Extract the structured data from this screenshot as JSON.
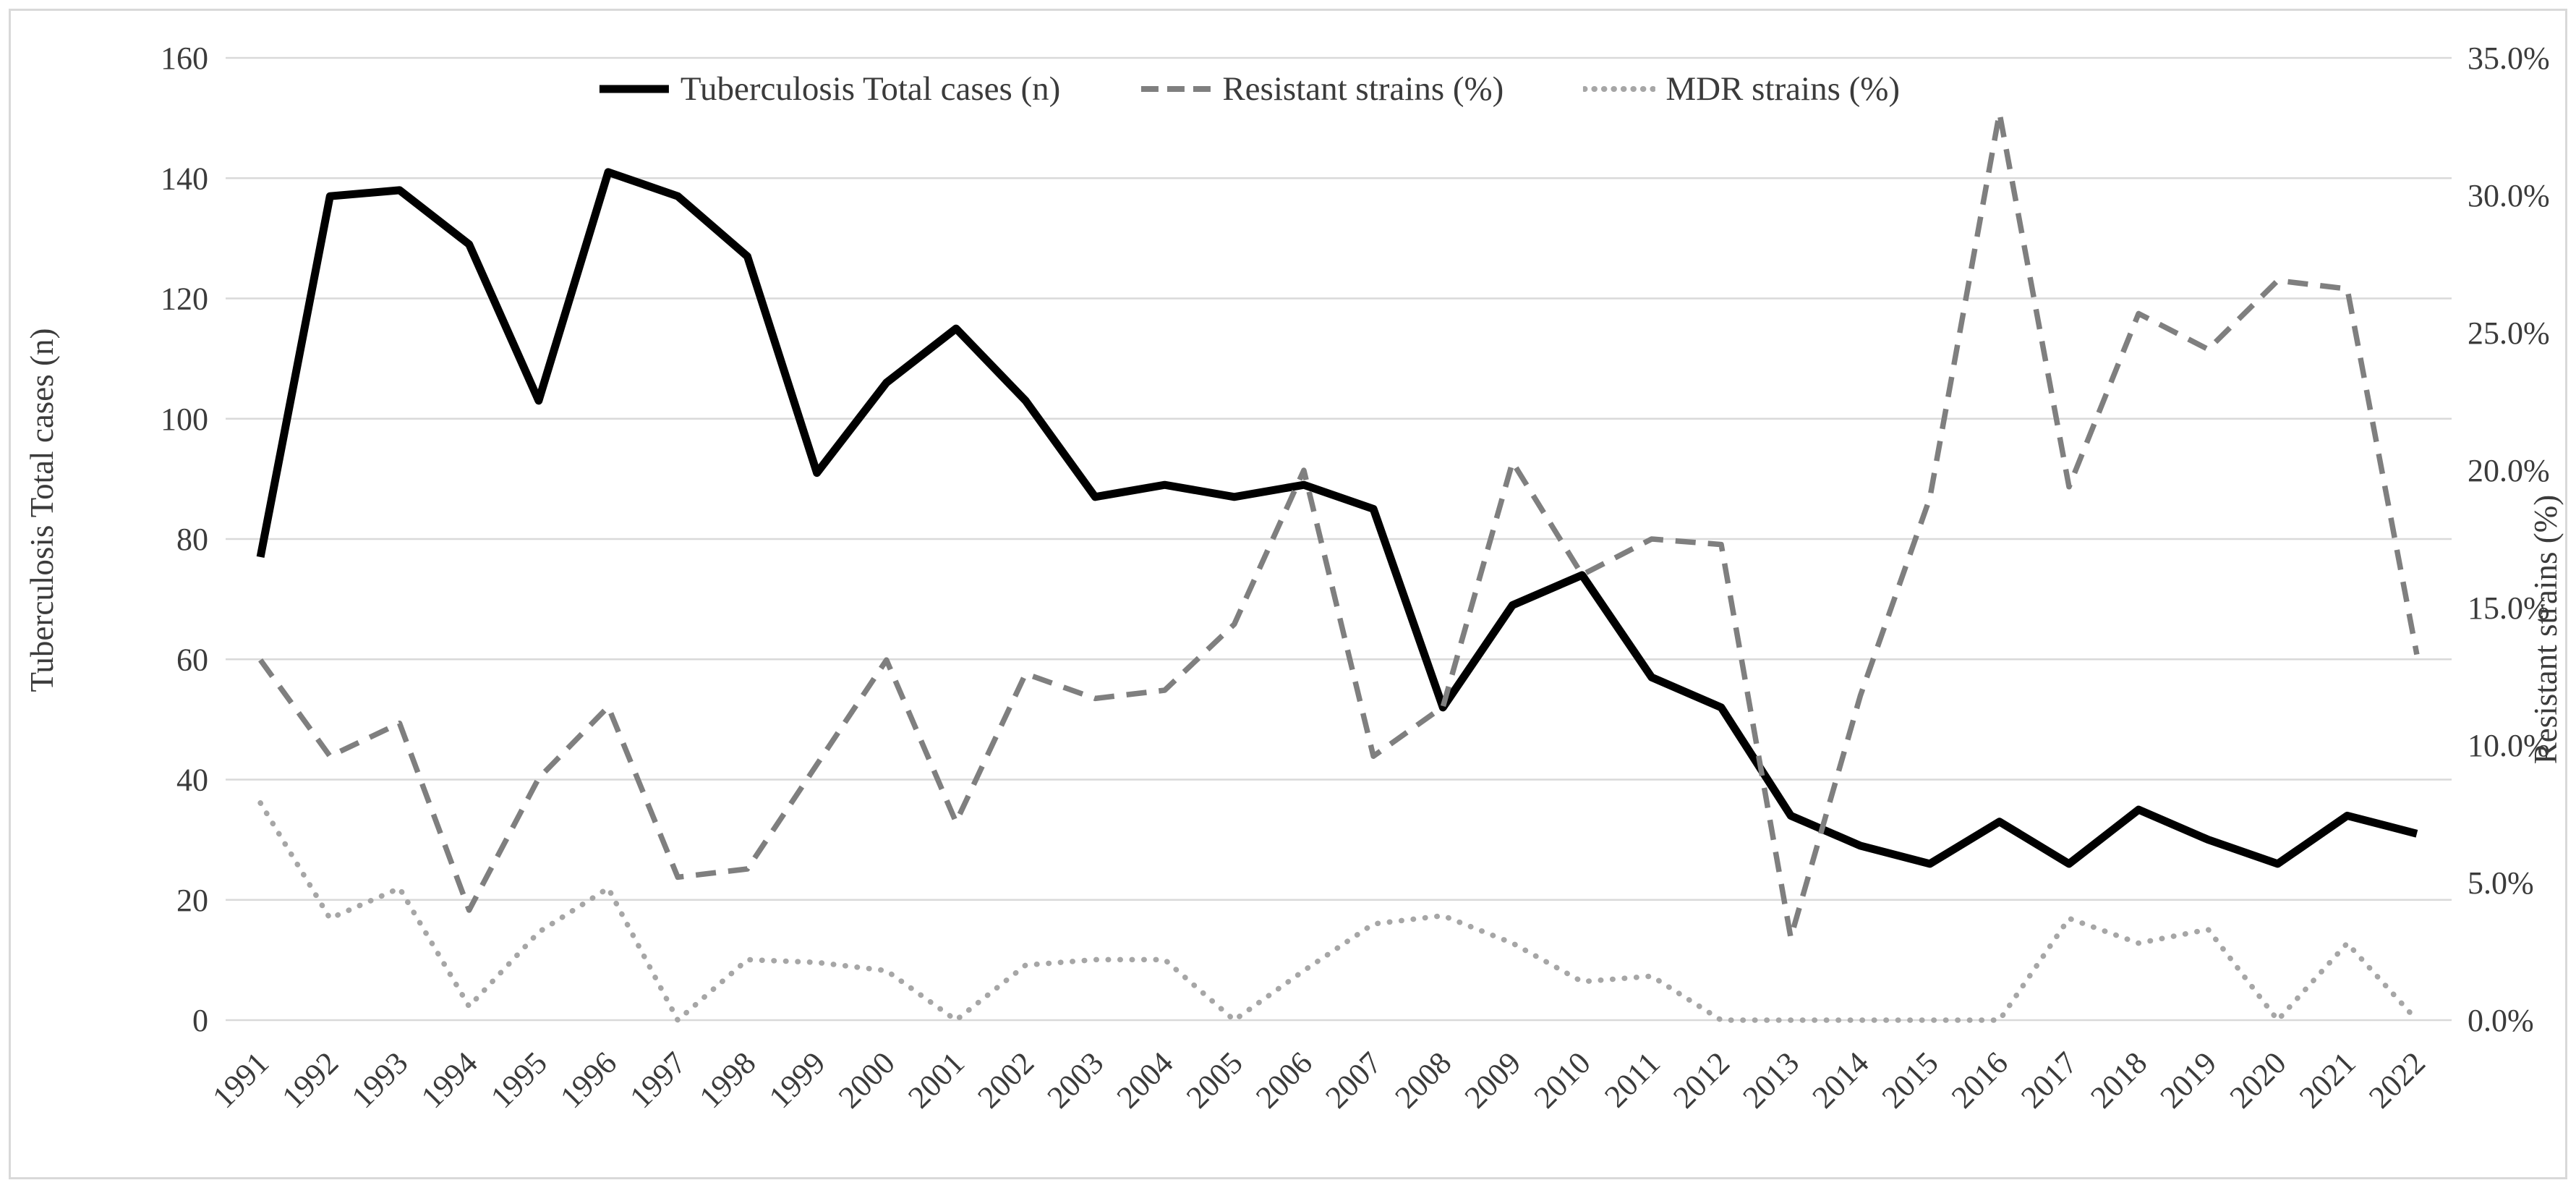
{
  "chart_data": {
    "type": "line",
    "title": "",
    "x": [
      1991,
      1992,
      1993,
      1994,
      1995,
      1996,
      1997,
      1998,
      1999,
      2000,
      2001,
      2002,
      2003,
      2004,
      2005,
      2006,
      2007,
      2008,
      2009,
      2010,
      2011,
      2012,
      2013,
      2014,
      2015,
      2016,
      2017,
      2018,
      2019,
      2020,
      2021,
      2022
    ],
    "series": [
      {
        "name": "Tuberculosis Total cases (n)",
        "axis": "left",
        "style": "solid",
        "color": "#000000",
        "values": [
          77,
          137,
          138,
          129,
          103,
          141,
          137,
          127,
          91,
          106,
          115,
          103,
          87,
          89,
          87,
          89,
          85,
          52,
          69,
          74,
          57,
          52,
          34,
          29,
          26,
          33,
          26,
          35,
          30,
          26,
          34,
          31
        ]
      },
      {
        "name": "Resistant strains (%)",
        "axis": "right",
        "style": "dashed",
        "color": "#7f7f7f",
        "values": [
          13.1,
          9.6,
          10.8,
          4.0,
          8.8,
          11.4,
          5.2,
          5.5,
          9.3,
          13.1,
          7.2,
          12.6,
          11.7,
          12.0,
          14.4,
          20.0,
          9.6,
          11.4,
          20.3,
          16.2,
          17.5,
          17.3,
          3.0,
          11.8,
          19.0,
          33.0,
          19.4,
          25.7,
          24.4,
          26.9,
          26.6,
          13.3
        ]
      },
      {
        "name": "MDR strains (%)",
        "axis": "right",
        "style": "dotted",
        "color": "#a6a6a6",
        "values": [
          7.9,
          3.7,
          4.8,
          0.5,
          3.2,
          4.8,
          0.0,
          2.2,
          2.1,
          1.8,
          0.0,
          2.0,
          2.2,
          2.2,
          0.0,
          1.8,
          3.5,
          3.8,
          2.8,
          1.4,
          1.6,
          0.0,
          0.0,
          0.0,
          0.0,
          0.0,
          3.7,
          2.8,
          3.3,
          0.0,
          2.8,
          0.0
        ]
      }
    ],
    "y_left_axis": {
      "label": "Tuberculosis Total cases (n)",
      "min": 0,
      "max": 160,
      "step": 20
    },
    "y_right_axis": {
      "label": "Resistant strains (%)",
      "min": 0,
      "max": 35,
      "step": 5,
      "tick_suffix": "%",
      "tick_decimals": 1
    },
    "x_axis": {
      "label_rotation": -45
    },
    "grid": true,
    "legend_position": "top",
    "colors": {
      "gridline": "#d9d9d9",
      "frame": "#d9d9d9",
      "text": "#3b3b3b"
    }
  }
}
